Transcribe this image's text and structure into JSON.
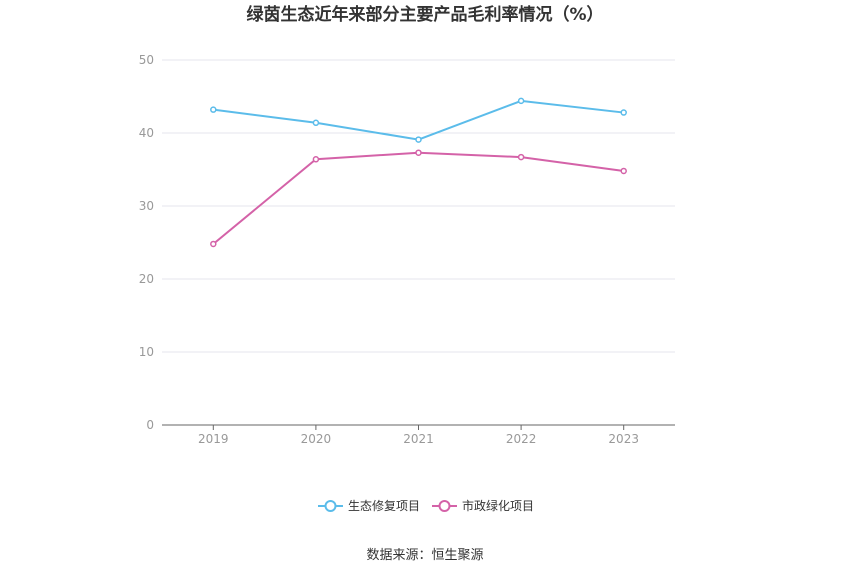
{
  "chart_data": {
    "type": "line",
    "title": "绿茵生态近年来部分主要产品毛利率情况（%）",
    "categories": [
      "2019",
      "2020",
      "2021",
      "2022",
      "2023"
    ],
    "series": [
      {
        "name": "生态修复项目",
        "color": "#5bbcea",
        "values": [
          43.2,
          41.4,
          39.1,
          44.4,
          42.8
        ]
      },
      {
        "name": "市政绿化项目",
        "color": "#d462a8",
        "values": [
          24.8,
          36.4,
          37.3,
          36.7,
          34.8
        ]
      }
    ],
    "ylim": [
      0,
      50
    ],
    "yticks": [
      0,
      10,
      20,
      30,
      40,
      50
    ],
    "grid": true,
    "legend": "bottom-center"
  },
  "source": "数据来源：恒生聚源"
}
